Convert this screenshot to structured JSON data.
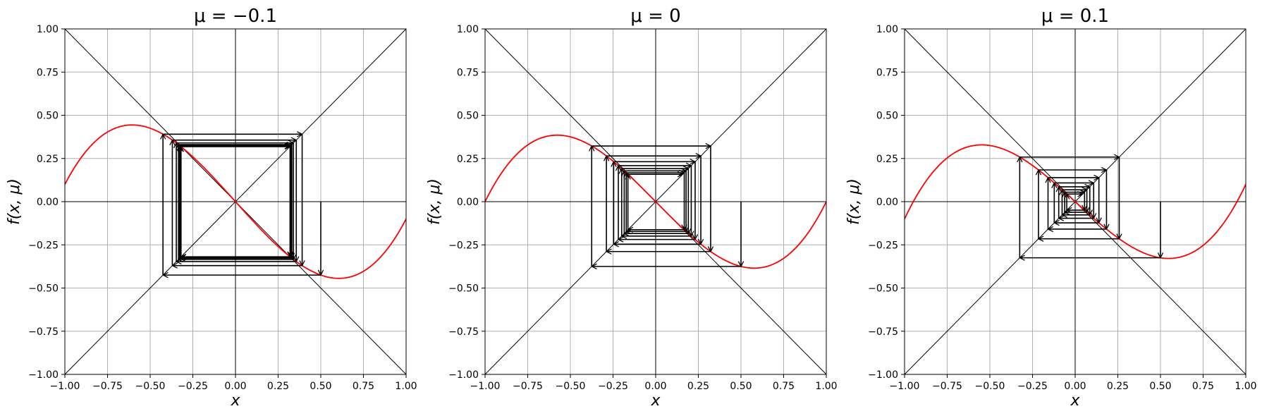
{
  "figure": {
    "ylabel": "f(x, μ)",
    "xlabel": "x"
  },
  "chart_data": [
    {
      "type": "line",
      "title": "μ = −0.1",
      "mu": -0.1,
      "xlabel": "x",
      "ylabel": "f(x, μ)",
      "xlim": [
        -1,
        1
      ],
      "ylim": [
        -1,
        1
      ],
      "xticks": [
        "−1.00",
        "−0.75",
        "−0.50",
        "−0.25",
        "0.00",
        "0.25",
        "0.50",
        "0.75",
        "1.00"
      ],
      "yticks": [
        "−1.00",
        "−0.75",
        "−0.50",
        "−0.25",
        "0.00",
        "0.25",
        "0.50",
        "0.75",
        "1.00"
      ],
      "grid": true,
      "reference_lines": [
        "y = x",
        "y = −x",
        "x = 0",
        "y = 0"
      ],
      "series": [
        {
          "kind": "curve",
          "color": "#ff0000",
          "formula": "f(x) = μ·x − x + x³",
          "x_range": [
            -1,
            1
          ]
        },
        {
          "kind": "cobweb",
          "color": "#000000",
          "x0": 0.5,
          "iterations": 16
        }
      ]
    },
    {
      "type": "line",
      "title": "μ = 0",
      "mu": 0,
      "xlabel": "x",
      "ylabel": "f(x, μ)",
      "xlim": [
        -1,
        1
      ],
      "ylim": [
        -1,
        1
      ],
      "xticks": [
        "−1.00",
        "−0.75",
        "−0.50",
        "−0.25",
        "0.00",
        "0.25",
        "0.50",
        "0.75",
        "1.00"
      ],
      "yticks": [
        "−1.00",
        "−0.75",
        "−0.50",
        "−0.25",
        "0.00",
        "0.25",
        "0.50",
        "0.75",
        "1.00"
      ],
      "grid": true,
      "reference_lines": [
        "y = x",
        "y = −x",
        "x = 0",
        "y = 0"
      ],
      "series": [
        {
          "kind": "curve",
          "color": "#ff0000",
          "formula": "f(x) = μ·x − x + x³",
          "x_range": [
            -1,
            1
          ]
        },
        {
          "kind": "cobweb",
          "color": "#000000",
          "x0": 0.5,
          "iterations": 16
        }
      ]
    },
    {
      "type": "line",
      "title": "μ = 0.1",
      "mu": 0.1,
      "xlabel": "x",
      "ylabel": "f(x, μ)",
      "xlim": [
        -1,
        1
      ],
      "ylim": [
        -1,
        1
      ],
      "xticks": [
        "−1.00",
        "−0.75",
        "−0.50",
        "−0.25",
        "0.00",
        "0.25",
        "0.50",
        "0.75",
        "1.00"
      ],
      "yticks": [
        "−1.00",
        "−0.75",
        "−0.50",
        "−0.25",
        "0.00",
        "0.25",
        "0.50",
        "0.75",
        "1.00"
      ],
      "grid": true,
      "reference_lines": [
        "y = x",
        "y = −x",
        "x = 0",
        "y = 0"
      ],
      "series": [
        {
          "kind": "curve",
          "color": "#ff0000",
          "formula": "f(x) = μ·x − x + x³",
          "x_range": [
            -1,
            1
          ]
        },
        {
          "kind": "cobweb",
          "color": "#000000",
          "x0": 0.5,
          "iterations": 16
        }
      ]
    }
  ]
}
